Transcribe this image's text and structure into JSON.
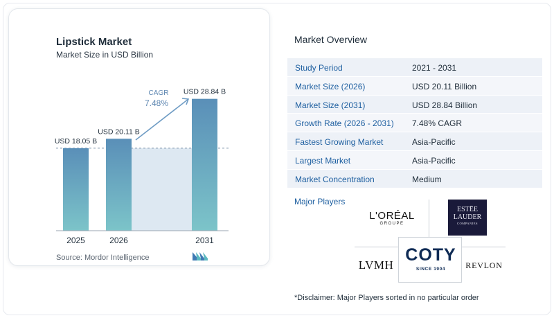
{
  "chart_data": {
    "type": "bar",
    "title": "Lipstick Market",
    "subtitle": "Market Size in USD Billion",
    "categories": [
      "2025",
      "2026",
      "2031"
    ],
    "values": [
      18.05,
      20.11,
      28.84
    ],
    "data_labels": [
      "USD 18.05 B",
      "USD 20.11 B",
      "USD 28.84 B"
    ],
    "cagr_label": "CAGR",
    "cagr_value": "7.48%",
    "ylim": [
      0,
      30
    ],
    "grid": false,
    "colors": {
      "bar_top": "#5a8fb8",
      "bar_bottom": "#7cc4c9",
      "band": "#dde8f2",
      "arrow": "#6f9cc4",
      "cagr_text": "#5d86b1"
    }
  },
  "source": "Source: Mordor Intelligence",
  "logo_icon": "mordor-intelligence-logo-icon",
  "overview": {
    "title": "Market Overview",
    "rows": [
      {
        "label": "Study Period",
        "value": "2021 - 2031"
      },
      {
        "label": "Market Size (2026)",
        "value": "USD 20.11 Billion"
      },
      {
        "label": "Market Size (2031)",
        "value": "USD 28.84 Billion"
      },
      {
        "label": "Growth Rate (2026 - 2031)",
        "value": "7.48% CAGR"
      },
      {
        "label": "Fastest Growing Market",
        "value": "Asia-Pacific"
      },
      {
        "label": "Largest Market",
        "value": "Asia-Pacific"
      },
      {
        "label": "Market Concentration",
        "value": "Medium"
      }
    ]
  },
  "major_players": {
    "label": "Major Players",
    "loreal": "L'ORÉAL",
    "loreal_sub": "GROUPE",
    "estee_line1": "ESTĒE",
    "estee_line2": "LAUDER",
    "estee_sub": "COMPANIES",
    "coty": "COTY",
    "coty_sub": "SINCE 1904",
    "lvmh": "LVMH",
    "revlon": "REVLON"
  },
  "disclaimer": "*Disclaimer: Major Players sorted in no particular order"
}
